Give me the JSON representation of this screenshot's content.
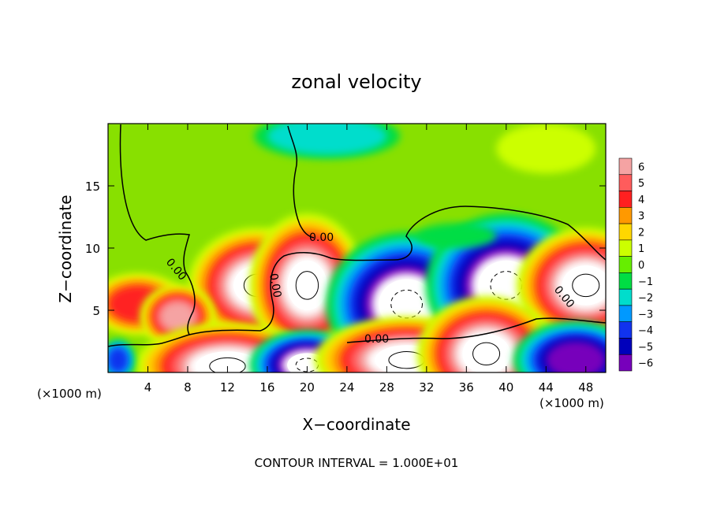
{
  "chart_data": {
    "type": "heatmap",
    "title": "zonal velocity",
    "xlabel": "X−coordinate",
    "ylabel": "Z−coordinate",
    "x_unit_label": "(×1000 m)",
    "x_unit_label_right": "(×1000 m)",
    "footer": "CONTOUR INTERVAL = 1.000E+01",
    "xlim": [
      0,
      50
    ],
    "ylim": [
      0,
      20
    ],
    "x_ticks": [
      4,
      8,
      12,
      16,
      20,
      24,
      28,
      32,
      36,
      40,
      44,
      48
    ],
    "y_ticks": [
      5,
      10,
      15
    ],
    "contour_label": "0.00",
    "colorbar": {
      "levels": [
        6,
        5,
        4,
        3,
        2,
        1,
        0,
        -1,
        -2,
        -3,
        -4,
        -5,
        -6
      ],
      "colors": [
        "#f5a3a3",
        "#ff5c5c",
        "#ff2020",
        "#ff9900",
        "#ffd700",
        "#ccff00",
        "#66ee00",
        "#00dd44",
        "#00ddcc",
        "#0099ff",
        "#1133ee",
        "#0000bb",
        "#7700bb"
      ]
    },
    "background_color": "#88e000",
    "cells": [
      {
        "x": 15,
        "y": 7,
        "rx": 3,
        "ry": 2,
        "v": 8
      },
      {
        "x": 20,
        "y": 7,
        "rx": 2.5,
        "ry": 2.5,
        "v": 8
      },
      {
        "x": 30,
        "y": 5.5,
        "rx": 3.5,
        "ry": 2.5,
        "v": -8
      },
      {
        "x": 40,
        "y": 7,
        "rx": 3.5,
        "ry": 2.5,
        "v": -8
      },
      {
        "x": 48,
        "y": 7,
        "rx": 3,
        "ry": 2,
        "v": 8
      },
      {
        "x": 3,
        "y": 5.5,
        "rx": 3,
        "ry": 1.5,
        "v": 4
      },
      {
        "x": 7,
        "y": 4.5,
        "rx": 1.8,
        "ry": 1.2,
        "v": 6
      },
      {
        "x": 12,
        "y": 0.5,
        "rx": 4,
        "ry": 1.5,
        "v": 7
      },
      {
        "x": 20,
        "y": 0.6,
        "rx": 2.5,
        "ry": 1.2,
        "v": -7
      },
      {
        "x": 30,
        "y": 1,
        "rx": 4,
        "ry": 1.5,
        "v": 7
      },
      {
        "x": 38,
        "y": 1.5,
        "rx": 3,
        "ry": 2,
        "v": 7
      },
      {
        "x": 47,
        "y": 1,
        "rx": 3,
        "ry": 1.5,
        "v": -6
      },
      {
        "x": 1,
        "y": 1,
        "rx": 1,
        "ry": 1,
        "v": -4
      },
      {
        "x": 35,
        "y": 11,
        "rx": 4,
        "ry": 1,
        "v": -1
      },
      {
        "x": 22,
        "y": 19,
        "rx": 6,
        "ry": 1.5,
        "v": -2
      },
      {
        "x": 44,
        "y": 18,
        "rx": 5,
        "ry": 2,
        "v": 1
      }
    ]
  }
}
